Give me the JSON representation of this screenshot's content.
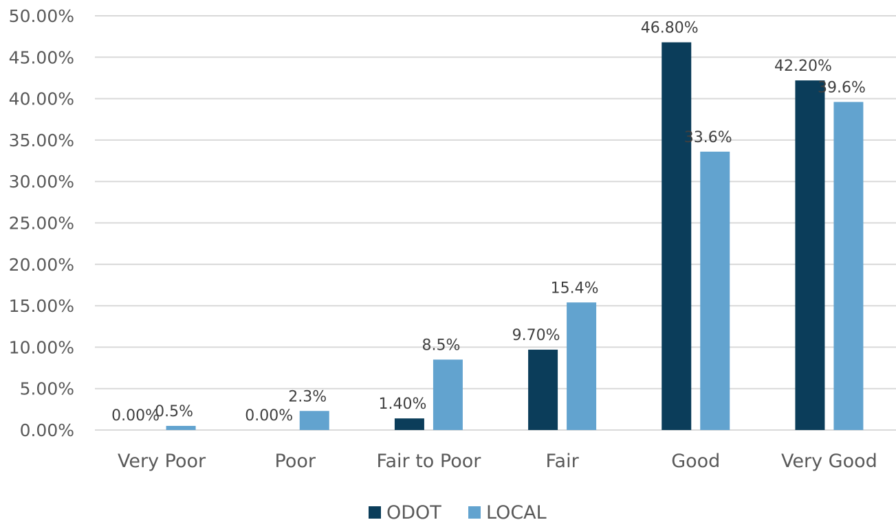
{
  "chart_data": {
    "type": "bar",
    "categories": [
      "Very Poor",
      "Poor",
      "Fair to Poor",
      "Fair",
      "Good",
      "Very Good"
    ],
    "series": [
      {
        "name": "ODOT",
        "color": "#0b3d5a",
        "values": [
          0.0,
          0.0,
          1.4,
          9.7,
          46.8,
          42.2
        ],
        "labels": [
          "0.00%",
          "0.00%",
          "1.40%",
          "9.70%",
          "46.80%",
          "42.20%"
        ]
      },
      {
        "name": "LOCAL",
        "color": "#62a3cf",
        "values": [
          0.5,
          2.3,
          8.5,
          15.4,
          33.6,
          39.6
        ],
        "labels": [
          "0.5%",
          "2.3%",
          "8.5%",
          "15.4%",
          "33.6%",
          "39.6%"
        ]
      }
    ],
    "y_ticks": [
      "0.00%",
      "5.00%",
      "10.00%",
      "15.00%",
      "20.00%",
      "25.00%",
      "30.00%",
      "35.00%",
      "40.00%",
      "45.00%",
      "50.00%"
    ],
    "ylim": [
      0,
      50
    ],
    "grid": true,
    "legend_position": "bottom"
  }
}
